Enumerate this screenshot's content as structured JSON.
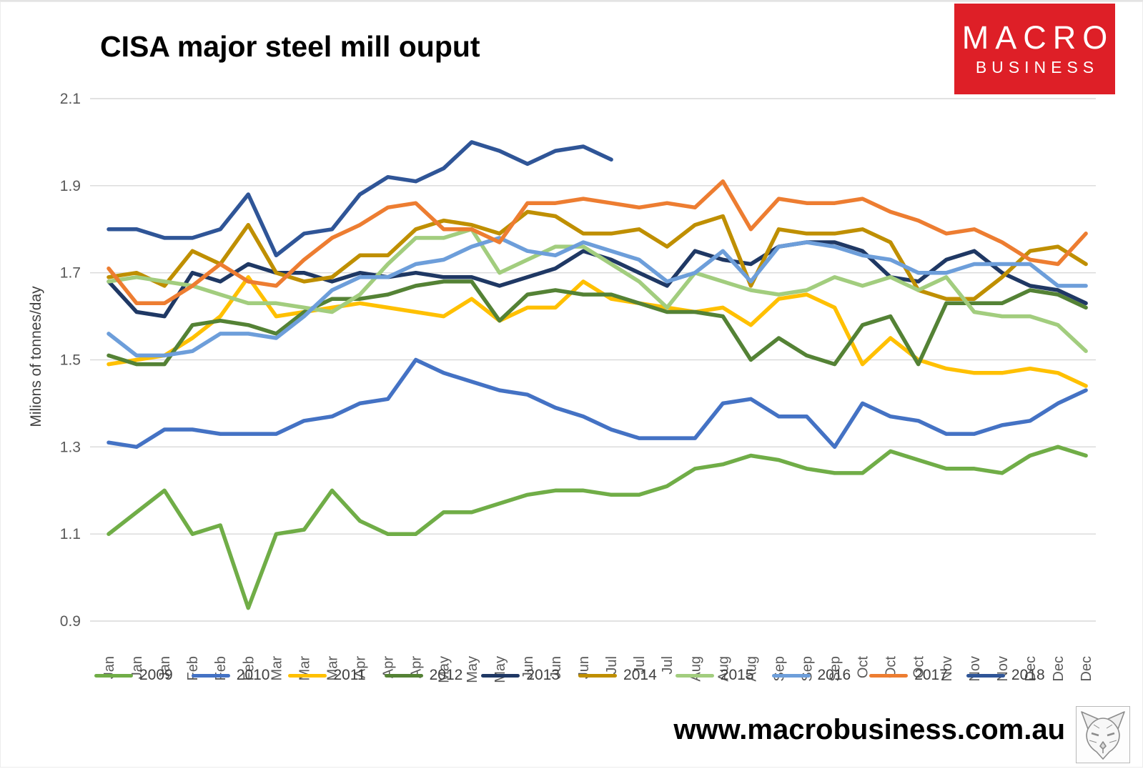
{
  "page": {
    "title": "CISA major steel mill ouput"
  },
  "logo": {
    "line1": "MACRO",
    "line2": "BUSINESS",
    "bg_color": "#de1f27"
  },
  "footer": {
    "website": "www.macrobusiness.com.au",
    "icon": "fox-sketch-icon"
  },
  "colors": {
    "gridline": "#d9d9d9",
    "axis_text": "#595959",
    "legend_text": "#404040"
  },
  "chart_data": {
    "type": "line",
    "title": "CISA major steel mill ouput",
    "xlabel": "",
    "ylabel": "Milions of tonnes/day",
    "ylim": [
      0.9,
      2.1
    ],
    "yticks": [
      0.9,
      1.1,
      1.3,
      1.5,
      1.7,
      1.9,
      2.1
    ],
    "grid": "horizontal",
    "legend_position": "bottom",
    "x_note": "three 10-day CISA readings per month",
    "categories": [
      "Jan",
      "Jan",
      "Jan",
      "Feb",
      "Feb",
      "Feb",
      "Mar",
      "Mar",
      "Mar",
      "Apr",
      "Apr",
      "Apr",
      "May",
      "May",
      "May",
      "Jun",
      "Jun",
      "Jun",
      "Jul",
      "Jul",
      "Jul",
      "Aug",
      "Aug",
      "Aug",
      "Sep",
      "Sep",
      "Sep",
      "Oct",
      "Oct",
      "Oct",
      "Nov",
      "Nov",
      "Nov",
      "Dec",
      "Dec",
      "Dec"
    ],
    "series": [
      {
        "name": "2009",
        "color": "#70ad47",
        "values": [
          1.1,
          1.15,
          1.2,
          1.1,
          1.12,
          0.93,
          1.1,
          1.11,
          1.2,
          1.13,
          1.1,
          1.1,
          1.15,
          1.15,
          1.17,
          1.19,
          1.2,
          1.2,
          1.19,
          1.19,
          1.21,
          1.25,
          1.26,
          1.28,
          1.27,
          1.25,
          1.24,
          1.24,
          1.29,
          1.27,
          1.25,
          1.25,
          1.24,
          1.28,
          1.3,
          1.28
        ]
      },
      {
        "name": "2010",
        "color": "#4472c4",
        "values": [
          1.31,
          1.3,
          1.34,
          1.34,
          1.33,
          1.33,
          1.33,
          1.36,
          1.37,
          1.4,
          1.41,
          1.5,
          1.47,
          1.45,
          1.43,
          1.42,
          1.39,
          1.37,
          1.34,
          1.32,
          1.32,
          1.32,
          1.4,
          1.41,
          1.37,
          1.37,
          1.3,
          1.4,
          1.37,
          1.36,
          1.33,
          1.33,
          1.35,
          1.36,
          1.4,
          1.43
        ]
      },
      {
        "name": "2011",
        "color": "#ffc000",
        "values": [
          1.49,
          1.5,
          1.51,
          1.55,
          1.6,
          1.69,
          1.6,
          1.61,
          1.62,
          1.63,
          1.62,
          1.61,
          1.6,
          1.64,
          1.59,
          1.62,
          1.62,
          1.68,
          1.64,
          1.63,
          1.62,
          1.61,
          1.62,
          1.58,
          1.64,
          1.65,
          1.62,
          1.49,
          1.55,
          1.5,
          1.48,
          1.47,
          1.47,
          1.48,
          1.47,
          1.44
        ]
      },
      {
        "name": "2012",
        "color": "#548235",
        "values": [
          1.51,
          1.49,
          1.49,
          1.58,
          1.59,
          1.58,
          1.56,
          1.61,
          1.64,
          1.64,
          1.65,
          1.67,
          1.68,
          1.68,
          1.59,
          1.65,
          1.66,
          1.65,
          1.65,
          1.63,
          1.61,
          1.61,
          1.6,
          1.5,
          1.55,
          1.51,
          1.49,
          1.58,
          1.6,
          1.49,
          1.63,
          1.63,
          1.63,
          1.66,
          1.65,
          1.62
        ]
      },
      {
        "name": "2013",
        "color": "#1f3864",
        "values": [
          1.68,
          1.61,
          1.6,
          1.7,
          1.68,
          1.72,
          1.7,
          1.7,
          1.68,
          1.7,
          1.69,
          1.7,
          1.69,
          1.69,
          1.67,
          1.69,
          1.71,
          1.75,
          1.73,
          1.7,
          1.67,
          1.75,
          1.73,
          1.72,
          1.76,
          1.77,
          1.77,
          1.75,
          1.69,
          1.68,
          1.73,
          1.75,
          1.7,
          1.67,
          1.66,
          1.63
        ]
      },
      {
        "name": "2014",
        "color": "#bf8f00",
        "values": [
          1.69,
          1.7,
          1.67,
          1.75,
          1.72,
          1.81,
          1.7,
          1.68,
          1.69,
          1.74,
          1.74,
          1.8,
          1.82,
          1.81,
          1.79,
          1.84,
          1.83,
          1.79,
          1.79,
          1.8,
          1.76,
          1.81,
          1.83,
          1.67,
          1.8,
          1.79,
          1.79,
          1.8,
          1.77,
          1.66,
          1.64,
          1.64,
          1.69,
          1.75,
          1.76,
          1.72
        ]
      },
      {
        "name": "2015",
        "color": "#a2cd7e",
        "values": [
          1.68,
          1.69,
          1.68,
          1.67,
          1.65,
          1.63,
          1.63,
          1.62,
          1.61,
          1.65,
          1.72,
          1.78,
          1.78,
          1.8,
          1.7,
          1.73,
          1.76,
          1.76,
          1.72,
          1.68,
          1.62,
          1.7,
          1.68,
          1.66,
          1.65,
          1.66,
          1.69,
          1.67,
          1.69,
          1.66,
          1.69,
          1.61,
          1.6,
          1.6,
          1.58,
          1.52
        ]
      },
      {
        "name": "2016",
        "color": "#6d9eda",
        "values": [
          1.56,
          1.51,
          1.51,
          1.52,
          1.56,
          1.56,
          1.55,
          1.6,
          1.66,
          1.69,
          1.69,
          1.72,
          1.73,
          1.76,
          1.78,
          1.75,
          1.74,
          1.77,
          1.75,
          1.73,
          1.68,
          1.7,
          1.75,
          1.68,
          1.76,
          1.77,
          1.76,
          1.74,
          1.73,
          1.7,
          1.7,
          1.72,
          1.72,
          1.72,
          1.67,
          1.67
        ]
      },
      {
        "name": "2017",
        "color": "#ed7d31",
        "values": [
          1.71,
          1.63,
          1.63,
          1.67,
          1.72,
          1.68,
          1.67,
          1.73,
          1.78,
          1.81,
          1.85,
          1.86,
          1.8,
          1.8,
          1.77,
          1.86,
          1.86,
          1.87,
          1.86,
          1.85,
          1.86,
          1.85,
          1.91,
          1.8,
          1.87,
          1.86,
          1.86,
          1.87,
          1.84,
          1.82,
          1.79,
          1.8,
          1.77,
          1.73,
          1.72,
          1.79
        ]
      },
      {
        "name": "2018",
        "color": "#2f5597",
        "values": [
          1.8,
          1.8,
          1.78,
          1.78,
          1.8,
          1.88,
          1.74,
          1.79,
          1.8,
          1.88,
          1.92,
          1.91,
          1.94,
          2.0,
          1.98,
          1.95,
          1.98,
          1.99,
          1.96,
          null,
          null,
          null,
          null,
          null,
          null,
          null,
          null,
          null,
          null,
          null,
          null,
          null,
          null,
          null,
          null,
          null
        ]
      }
    ]
  }
}
